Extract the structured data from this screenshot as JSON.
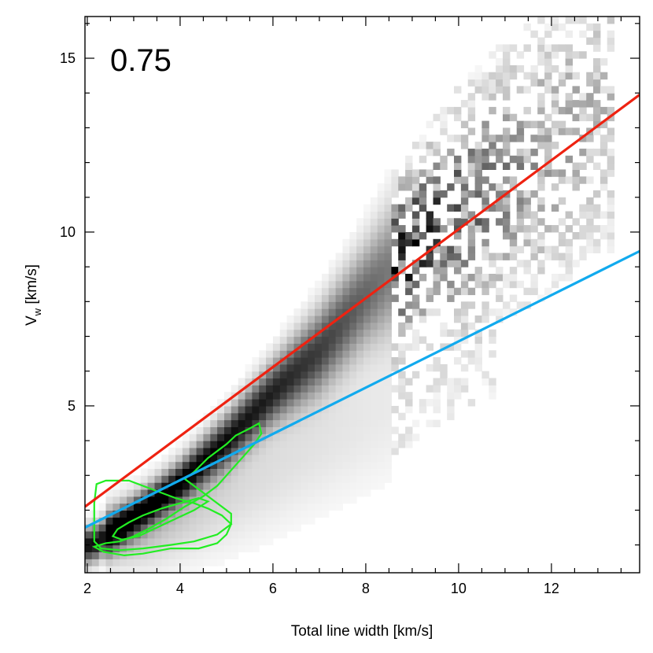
{
  "chart_data": {
    "type": "heatmap",
    "panel_label": "0.75",
    "xlabel": "Total line width [km/s]",
    "ylabel_main": "V",
    "ylabel_sub": "w",
    "ylabel_unit": " [km/s]",
    "xlim": [
      1.95,
      13.9
    ],
    "ylim": [
      0.2,
      16.2
    ],
    "x_ticks": [
      2,
      4,
      6,
      8,
      10,
      12
    ],
    "x_tick_labels": [
      "2",
      "4",
      "6",
      "8",
      "10",
      "12"
    ],
    "x_minor_step": 0.5,
    "y_ticks": [
      5,
      10,
      15
    ],
    "y_tick_labels": [
      "5",
      "10",
      "15"
    ],
    "y_minor_step": 1,
    "grid": false,
    "colormap": "gray_r",
    "density_ridges": [
      {
        "x": [
          2.1,
          3,
          4,
          5,
          6,
          7,
          8,
          9,
          10,
          11,
          12,
          13
        ],
        "y": [
          1.0,
          1.8,
          2.8,
          4.0,
          5.4,
          6.6,
          8.2,
          9.6,
          10.6,
          11.5,
          12.4,
          13.5
        ],
        "width": [
          0.35,
          0.35,
          0.4,
          0.5,
          0.6,
          0.8,
          1.0,
          1.4,
          1.8,
          2.2,
          2.5,
          2.8
        ],
        "peak": [
          0.95,
          0.95,
          0.95,
          0.9,
          0.85,
          0.75,
          0.6,
          0.45,
          0.35,
          0.25,
          0.2,
          0.15
        ]
      },
      {
        "x": [
          2.5,
          3.5,
          4.5,
          5.5,
          6.5,
          7.5,
          8.5,
          9.5,
          10.5
        ],
        "y": [
          1.3,
          1.6,
          2.2,
          2.9,
          3.6,
          4.3,
          4.9,
          5.4,
          5.8
        ],
        "width": [
          0.6,
          0.8,
          1.0,
          1.2,
          1.3,
          1.4,
          1.5,
          1.6,
          1.6
        ],
        "peak": [
          0.35,
          0.25,
          0.18,
          0.14,
          0.12,
          0.1,
          0.08,
          0.06,
          0.05
        ]
      }
    ],
    "lines": [
      {
        "name": "",
        "color": "#ee2211",
        "x": [
          1.95,
          13.9
        ],
        "y": [
          2.1,
          13.95
        ]
      },
      {
        "name": "",
        "color": "#11aaee",
        "x": [
          1.95,
          13.9
        ],
        "y": [
          1.5,
          9.45
        ]
      }
    ],
    "contours": [
      {
        "color": "#22ee22",
        "points": [
          [
            2.15,
            0.95
          ],
          [
            2.35,
            0.8
          ],
          [
            2.8,
            0.7
          ],
          [
            3.2,
            0.75
          ],
          [
            3.8,
            0.9
          ],
          [
            4.4,
            0.9
          ],
          [
            4.8,
            1.05
          ],
          [
            5.0,
            1.3
          ],
          [
            5.1,
            1.6
          ],
          [
            5.1,
            1.9
          ],
          [
            4.9,
            2.1
          ],
          [
            4.6,
            2.4
          ],
          [
            4.3,
            2.7
          ],
          [
            4.1,
            2.9
          ],
          [
            4.3,
            3.1
          ],
          [
            4.6,
            3.5
          ],
          [
            5.0,
            3.9
          ],
          [
            5.2,
            4.15
          ],
          [
            5.5,
            4.35
          ],
          [
            5.7,
            4.5
          ],
          [
            5.75,
            4.2
          ],
          [
            5.6,
            3.9
          ],
          [
            5.4,
            3.6
          ],
          [
            5.2,
            3.3
          ],
          [
            5.0,
            3.0
          ],
          [
            4.8,
            2.7
          ],
          [
            4.5,
            2.4
          ],
          [
            4.1,
            2.1
          ],
          [
            3.7,
            1.75
          ],
          [
            3.3,
            1.45
          ],
          [
            3.0,
            1.25
          ],
          [
            2.7,
            1.1
          ],
          [
            2.4,
            1.05
          ],
          [
            2.15,
            0.95
          ]
        ]
      },
      {
        "color": "#22ee22",
        "points": [
          [
            2.2,
            2.75
          ],
          [
            2.4,
            2.85
          ],
          [
            2.9,
            2.85
          ],
          [
            3.4,
            2.6
          ],
          [
            3.9,
            2.35
          ],
          [
            4.3,
            2.2
          ],
          [
            4.6,
            2.05
          ],
          [
            4.9,
            1.85
          ],
          [
            5.1,
            1.6
          ],
          [
            4.8,
            1.3
          ],
          [
            4.3,
            1.1
          ],
          [
            3.8,
            1.0
          ],
          [
            3.2,
            0.9
          ],
          [
            2.7,
            0.85
          ],
          [
            2.3,
            0.9
          ],
          [
            2.15,
            1.1
          ],
          [
            2.15,
            1.6
          ],
          [
            2.15,
            2.2
          ],
          [
            2.2,
            2.75
          ]
        ]
      },
      {
        "color": "#22ee22",
        "points": [
          [
            2.55,
            1.25
          ],
          [
            2.75,
            1.15
          ],
          [
            3.1,
            1.25
          ],
          [
            3.5,
            1.5
          ],
          [
            3.9,
            1.75
          ],
          [
            4.3,
            2.0
          ],
          [
            4.6,
            2.25
          ],
          [
            4.4,
            2.35
          ],
          [
            4.0,
            2.2
          ],
          [
            3.6,
            2.05
          ],
          [
            3.2,
            1.85
          ],
          [
            2.9,
            1.65
          ],
          [
            2.65,
            1.45
          ],
          [
            2.55,
            1.25
          ]
        ]
      }
    ]
  }
}
